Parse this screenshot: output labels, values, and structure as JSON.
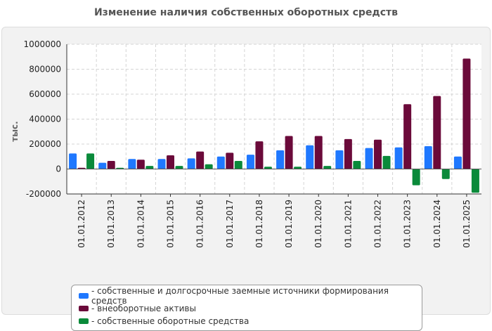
{
  "chart_data": {
    "type": "bar",
    "title": "Изменение наличия собственных оборотных средств",
    "ylabel": "тыс.",
    "xlabel": "",
    "ylim": [
      -200000,
      1000000
    ],
    "yticks": [
      -200000,
      0,
      200000,
      400000,
      600000,
      800000,
      1000000
    ],
    "ytick_labels": [
      "-200000",
      "0",
      "200000",
      "400000",
      "600000",
      "800000",
      "1000000"
    ],
    "grid": true,
    "legend_position": "bottom",
    "categories": [
      "01.01.2012",
      "01.01.2013",
      "01.01.2014",
      "01.01.2015",
      "01.01.2016",
      "01.01.2017",
      "01.01.2018",
      "01.01.2019",
      "01.01.2020",
      "01.01.2021",
      "01.01.2022",
      "01.01.2023",
      "01.01.2024",
      "01.01.2025"
    ],
    "series": [
      {
        "name": "собственные и долгосрочные заемные источники формирования средств",
        "color": "#1f78ff",
        "values": [
          125000,
          50000,
          80000,
          80000,
          85000,
          100000,
          115000,
          150000,
          190000,
          150000,
          168000,
          173000,
          183000,
          100000
        ]
      },
      {
        "name": "внеоборотные активы",
        "color": "#6b0a3a",
        "values": [
          10000,
          65000,
          75000,
          110000,
          140000,
          130000,
          222000,
          265000,
          265000,
          240000,
          235000,
          520000,
          585000,
          885000
        ]
      },
      {
        "name": "собственные оборотные средства",
        "color": "#0a8a3a",
        "values": [
          125000,
          10000,
          25000,
          25000,
          38000,
          65000,
          18000,
          18000,
          25000,
          65000,
          105000,
          -130000,
          -80000,
          -190000
        ]
      }
    ]
  }
}
